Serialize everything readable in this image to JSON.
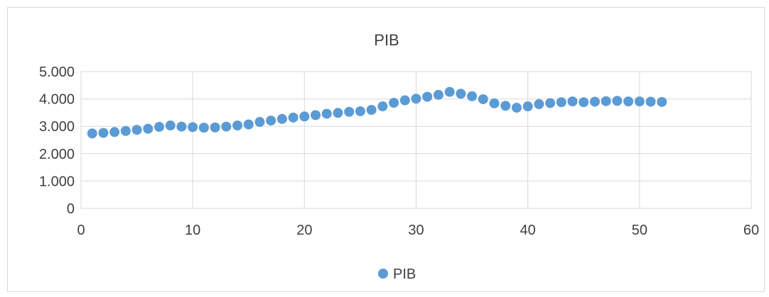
{
  "chart_data": {
    "type": "scatter",
    "title": "PIB",
    "xlabel": "",
    "ylabel": "",
    "xlim": [
      0,
      60
    ],
    "ylim": [
      0,
      5000
    ],
    "x_ticks": [
      "0",
      "10",
      "20",
      "30",
      "40",
      "50",
      "60"
    ],
    "y_ticks": [
      "0",
      "1.000",
      "2.000",
      "3.000",
      "4.000",
      "5.000"
    ],
    "grid": true,
    "legend_position": "bottom",
    "marker_color": "#5b9bd5",
    "series": [
      {
        "name": "PIB",
        "x": [
          1,
          2,
          3,
          4,
          5,
          6,
          7,
          8,
          9,
          10,
          11,
          12,
          13,
          14,
          15,
          16,
          17,
          18,
          19,
          20,
          21,
          22,
          23,
          24,
          25,
          26,
          27,
          28,
          29,
          30,
          31,
          32,
          33,
          34,
          35,
          36,
          37,
          38,
          39,
          40,
          41,
          42,
          43,
          44,
          45,
          46,
          47,
          48,
          49,
          50,
          51,
          52
        ],
        "y": [
          2740,
          2760,
          2790,
          2830,
          2870,
          2910,
          2980,
          3030,
          2990,
          2970,
          2950,
          2960,
          2990,
          3030,
          3070,
          3160,
          3210,
          3270,
          3320,
          3360,
          3410,
          3460,
          3490,
          3530,
          3550,
          3600,
          3730,
          3860,
          3950,
          4010,
          4080,
          4150,
          4260,
          4190,
          4100,
          3990,
          3840,
          3750,
          3680,
          3730,
          3810,
          3850,
          3880,
          3910,
          3880,
          3900,
          3920,
          3930,
          3910,
          3910,
          3900,
          3890
        ]
      }
    ]
  }
}
